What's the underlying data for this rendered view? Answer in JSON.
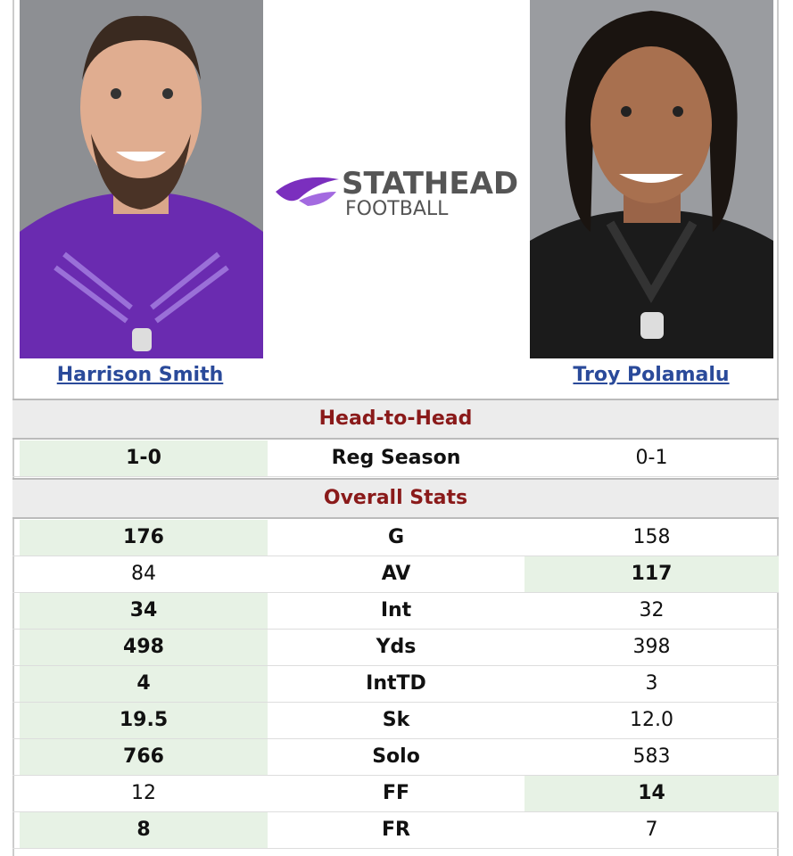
{
  "players": [
    {
      "name": "Harrison Smith"
    },
    {
      "name": "Troy Polamalu"
    }
  ],
  "logo": {
    "brand": "STATHEAD",
    "sport": "FOOTBALL"
  },
  "sections": [
    {
      "title": "Head-to-Head",
      "rows": [
        {
          "cells": [
            "1-0",
            "Reg Season",
            "0-1"
          ],
          "highlight": "left"
        }
      ]
    },
    {
      "title": "Overall Stats",
      "rows": [
        {
          "cells": [
            "176",
            "G",
            "158"
          ],
          "highlight": "left"
        },
        {
          "cells": [
            "84",
            "AV",
            "117"
          ],
          "highlight": "right"
        },
        {
          "cells": [
            "34",
            "Int",
            "32"
          ],
          "highlight": "left"
        },
        {
          "cells": [
            "498",
            "Yds",
            "398"
          ],
          "highlight": "left"
        },
        {
          "cells": [
            "4",
            "IntTD",
            "3"
          ],
          "highlight": "left"
        },
        {
          "cells": [
            "19.5",
            "Sk",
            "12.0"
          ],
          "highlight": "left"
        },
        {
          "cells": [
            "766",
            "Solo",
            "583"
          ],
          "highlight": "left"
        },
        {
          "cells": [
            "12",
            "FF",
            "14"
          ],
          "highlight": "right"
        },
        {
          "cells": [
            "8",
            "FR",
            "7"
          ],
          "highlight": "left"
        }
      ]
    }
  ]
}
